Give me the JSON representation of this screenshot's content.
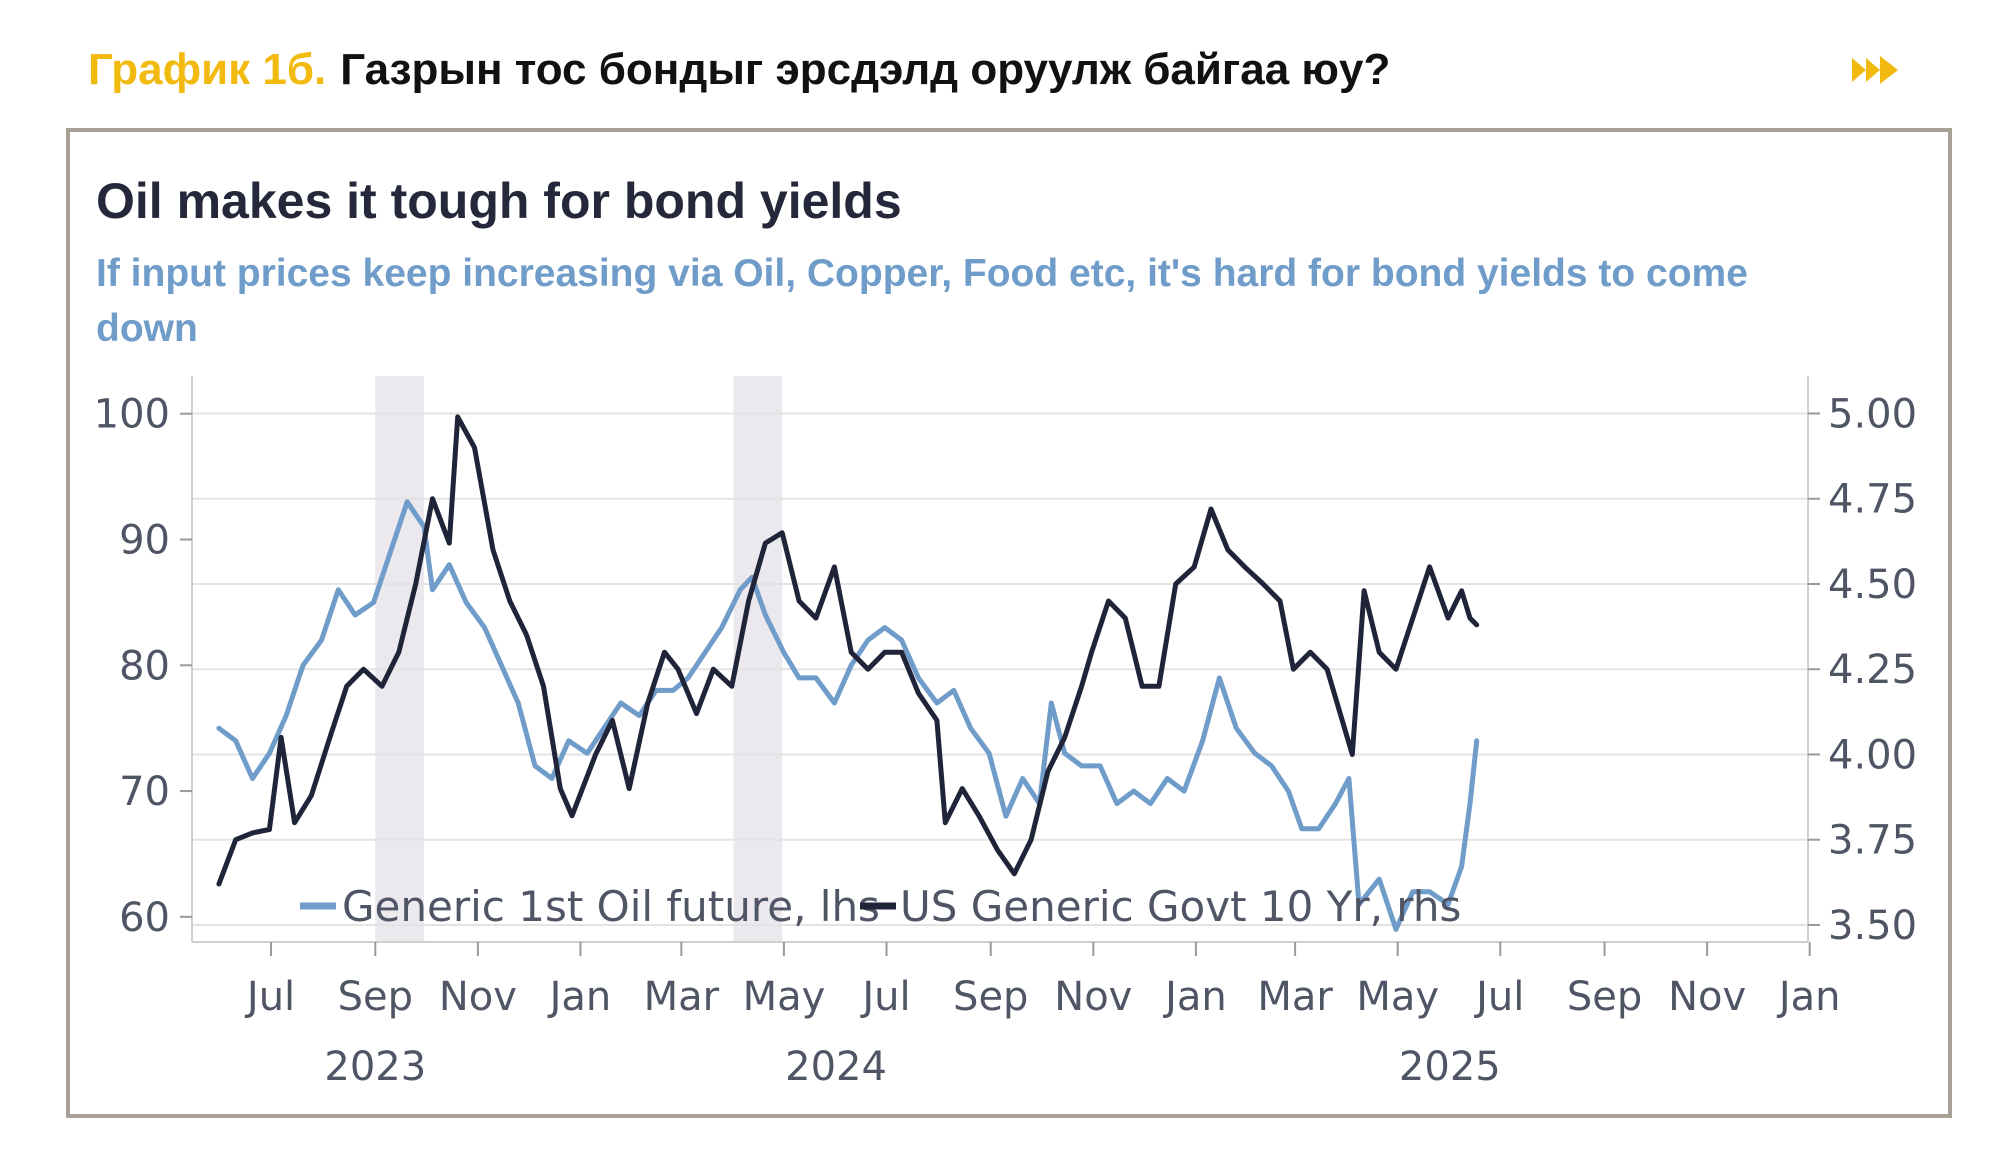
{
  "header": {
    "figure_label": "График 1б.",
    "figure_title": "Газрын тос бондыг эрсдэлд оруулж байгаа юу?",
    "arrow_icon": "double-chevron-right-icon",
    "accent_color": "#f2b90f"
  },
  "chart_data": {
    "type": "line",
    "title": "Oil makes it tough for bond yields",
    "subtitle": "If input prices keep increasing via Oil, Copper, Food etc, it's hard for bond yields to come down",
    "x_range": [
      "2023-05-15",
      "2025-12-31"
    ],
    "x_ticks": [
      {
        "label": "Jul",
        "date": "2023-07-01"
      },
      {
        "label": "Sep",
        "date": "2023-09-01"
      },
      {
        "label": "Nov",
        "date": "2023-11-01"
      },
      {
        "label": "Jan",
        "date": "2024-01-01"
      },
      {
        "label": "Mar",
        "date": "2024-03-01"
      },
      {
        "label": "May",
        "date": "2024-05-01"
      },
      {
        "label": "Jul",
        "date": "2024-07-01"
      },
      {
        "label": "Sep",
        "date": "2024-09-01"
      },
      {
        "label": "Nov",
        "date": "2024-11-01"
      },
      {
        "label": "Jan",
        "date": "2025-01-01"
      },
      {
        "label": "Mar",
        "date": "2025-03-01"
      },
      {
        "label": "May",
        "date": "2025-05-01"
      },
      {
        "label": "Jul",
        "date": "2025-07-01"
      },
      {
        "label": "Sep",
        "date": "2025-09-01"
      },
      {
        "label": "Nov",
        "date": "2025-11-01"
      },
      {
        "label": "Jan",
        "date": "2026-01-01"
      }
    ],
    "year_labels": [
      {
        "label": "2023",
        "date": "2023-09-01"
      },
      {
        "label": "2024",
        "date": "2024-06-01"
      },
      {
        "label": "2025",
        "date": "2025-06-01"
      }
    ],
    "left_axis": {
      "ylim": [
        58,
        103
      ],
      "ticks": [
        60,
        70,
        80,
        90,
        100
      ]
    },
    "right_axis": {
      "ylim": [
        3.45,
        5.11
      ],
      "ticks": [
        "3.50",
        "3.75",
        "4.00",
        "4.25",
        "4.50",
        "4.75",
        "5.00"
      ]
    },
    "grid": true,
    "shaded_periods": [
      {
        "start": "2023-09-01",
        "end": "2023-09-30"
      },
      {
        "start": "2024-04-01",
        "end": "2024-04-30"
      }
    ],
    "legend": {
      "placement": "bottom-left"
    },
    "series": [
      {
        "name": "Generic 1st Oil future, lhs",
        "axis": "left",
        "color": "#6f9cc9",
        "points": [
          [
            "2023-05-31",
            75
          ],
          [
            "2023-06-10",
            74
          ],
          [
            "2023-06-20",
            71
          ],
          [
            "2023-06-30",
            73
          ],
          [
            "2023-07-10",
            76
          ],
          [
            "2023-07-20",
            80
          ],
          [
            "2023-07-31",
            82
          ],
          [
            "2023-08-10",
            86
          ],
          [
            "2023-08-20",
            84
          ],
          [
            "2023-08-31",
            85
          ],
          [
            "2023-09-10",
            89
          ],
          [
            "2023-09-20",
            93
          ],
          [
            "2023-09-30",
            91
          ],
          [
            "2023-10-05",
            86
          ],
          [
            "2023-10-15",
            88
          ],
          [
            "2023-10-25",
            85
          ],
          [
            "2023-11-05",
            83
          ],
          [
            "2023-11-15",
            80
          ],
          [
            "2023-11-25",
            77
          ],
          [
            "2023-12-05",
            72
          ],
          [
            "2023-12-15",
            71
          ],
          [
            "2023-12-25",
            74
          ],
          [
            "2024-01-05",
            73
          ],
          [
            "2024-01-15",
            75
          ],
          [
            "2024-01-25",
            77
          ],
          [
            "2024-02-05",
            76
          ],
          [
            "2024-02-15",
            78
          ],
          [
            "2024-02-25",
            78
          ],
          [
            "2024-03-05",
            79
          ],
          [
            "2024-03-15",
            81
          ],
          [
            "2024-03-25",
            83
          ],
          [
            "2024-04-05",
            86
          ],
          [
            "2024-04-12",
            87
          ],
          [
            "2024-04-20",
            84
          ],
          [
            "2024-05-01",
            81
          ],
          [
            "2024-05-10",
            79
          ],
          [
            "2024-05-20",
            79
          ],
          [
            "2024-05-31",
            77
          ],
          [
            "2024-06-10",
            80
          ],
          [
            "2024-06-20",
            82
          ],
          [
            "2024-06-30",
            83
          ],
          [
            "2024-07-10",
            82
          ],
          [
            "2024-07-20",
            79
          ],
          [
            "2024-07-31",
            77
          ],
          [
            "2024-08-10",
            78
          ],
          [
            "2024-08-20",
            75
          ],
          [
            "2024-08-31",
            73
          ],
          [
            "2024-09-10",
            68
          ],
          [
            "2024-09-20",
            71
          ],
          [
            "2024-09-30",
            69
          ],
          [
            "2024-10-07",
            77
          ],
          [
            "2024-10-15",
            73
          ],
          [
            "2024-10-25",
            72
          ],
          [
            "2024-11-05",
            72
          ],
          [
            "2024-11-15",
            69
          ],
          [
            "2024-11-25",
            70
          ],
          [
            "2024-12-05",
            69
          ],
          [
            "2024-12-15",
            71
          ],
          [
            "2024-12-25",
            70
          ],
          [
            "2025-01-05",
            74
          ],
          [
            "2025-01-15",
            79
          ],
          [
            "2025-01-25",
            75
          ],
          [
            "2025-02-05",
            73
          ],
          [
            "2025-02-15",
            72
          ],
          [
            "2025-02-25",
            70
          ],
          [
            "2025-03-05",
            67
          ],
          [
            "2025-03-15",
            67
          ],
          [
            "2025-03-25",
            69
          ],
          [
            "2025-04-02",
            71
          ],
          [
            "2025-04-08",
            61
          ],
          [
            "2025-04-20",
            63
          ],
          [
            "2025-04-30",
            59
          ],
          [
            "2025-05-10",
            62
          ],
          [
            "2025-05-20",
            62
          ],
          [
            "2025-05-31",
            61
          ],
          [
            "2025-06-08",
            64
          ],
          [
            "2025-06-13",
            69
          ],
          [
            "2025-06-17",
            74
          ]
        ]
      },
      {
        "name": "US Generic Govt 10 Yr, rhs",
        "axis": "right",
        "color": "#1f2439",
        "points": [
          [
            "2023-05-31",
            3.62
          ],
          [
            "2023-06-10",
            3.75
          ],
          [
            "2023-06-20",
            3.77
          ],
          [
            "2023-06-30",
            3.78
          ],
          [
            "2023-07-07",
            4.05
          ],
          [
            "2023-07-15",
            3.8
          ],
          [
            "2023-07-25",
            3.88
          ],
          [
            "2023-08-05",
            4.05
          ],
          [
            "2023-08-15",
            4.2
          ],
          [
            "2023-08-25",
            4.25
          ],
          [
            "2023-09-05",
            4.2
          ],
          [
            "2023-09-15",
            4.3
          ],
          [
            "2023-09-25",
            4.5
          ],
          [
            "2023-10-05",
            4.75
          ],
          [
            "2023-10-15",
            4.62
          ],
          [
            "2023-10-20",
            4.99
          ],
          [
            "2023-10-30",
            4.9
          ],
          [
            "2023-11-10",
            4.6
          ],
          [
            "2023-11-20",
            4.45
          ],
          [
            "2023-11-30",
            4.35
          ],
          [
            "2023-12-10",
            4.2
          ],
          [
            "2023-12-20",
            3.9
          ],
          [
            "2023-12-27",
            3.82
          ],
          [
            "2024-01-10",
            4.0
          ],
          [
            "2024-01-20",
            4.1
          ],
          [
            "2024-01-30",
            3.9
          ],
          [
            "2024-02-10",
            4.15
          ],
          [
            "2024-02-20",
            4.3
          ],
          [
            "2024-02-28",
            4.25
          ],
          [
            "2024-03-10",
            4.12
          ],
          [
            "2024-03-20",
            4.25
          ],
          [
            "2024-03-31",
            4.2
          ],
          [
            "2024-04-10",
            4.45
          ],
          [
            "2024-04-20",
            4.62
          ],
          [
            "2024-04-30",
            4.65
          ],
          [
            "2024-05-10",
            4.45
          ],
          [
            "2024-05-20",
            4.4
          ],
          [
            "2024-05-31",
            4.55
          ],
          [
            "2024-06-10",
            4.3
          ],
          [
            "2024-06-20",
            4.25
          ],
          [
            "2024-06-30",
            4.3
          ],
          [
            "2024-07-10",
            4.3
          ],
          [
            "2024-07-20",
            4.18
          ],
          [
            "2024-07-31",
            4.1
          ],
          [
            "2024-08-05",
            3.8
          ],
          [
            "2024-08-15",
            3.9
          ],
          [
            "2024-08-25",
            3.82
          ],
          [
            "2024-09-05",
            3.72
          ],
          [
            "2024-09-15",
            3.65
          ],
          [
            "2024-09-25",
            3.75
          ],
          [
            "2024-10-05",
            3.95
          ],
          [
            "2024-10-15",
            4.05
          ],
          [
            "2024-10-25",
            4.2
          ],
          [
            "2024-10-31",
            4.3
          ],
          [
            "2024-11-10",
            4.45
          ],
          [
            "2024-11-20",
            4.4
          ],
          [
            "2024-11-30",
            4.2
          ],
          [
            "2024-12-10",
            4.2
          ],
          [
            "2024-12-20",
            4.5
          ],
          [
            "2024-12-31",
            4.55
          ],
          [
            "2025-01-10",
            4.72
          ],
          [
            "2025-01-20",
            4.6
          ],
          [
            "2025-01-30",
            4.55
          ],
          [
            "2025-02-10",
            4.5
          ],
          [
            "2025-02-20",
            4.45
          ],
          [
            "2025-02-28",
            4.25
          ],
          [
            "2025-03-10",
            4.3
          ],
          [
            "2025-03-20",
            4.25
          ],
          [
            "2025-04-04",
            4.0
          ],
          [
            "2025-04-11",
            4.48
          ],
          [
            "2025-04-20",
            4.3
          ],
          [
            "2025-04-30",
            4.25
          ],
          [
            "2025-05-10",
            4.4
          ],
          [
            "2025-05-20",
            4.55
          ],
          [
            "2025-05-31",
            4.4
          ],
          [
            "2025-06-08",
            4.48
          ],
          [
            "2025-06-13",
            4.4
          ],
          [
            "2025-06-17",
            4.38
          ]
        ]
      }
    ]
  }
}
